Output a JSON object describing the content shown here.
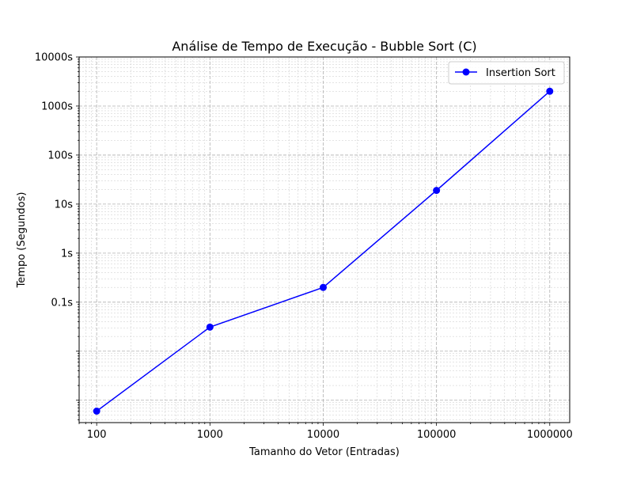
{
  "chart_data": {
    "type": "line",
    "title": "Análise de Tempo de Execução - Bubble Sort (C)",
    "xlabel": "Tamanho do Vetor (Entradas)",
    "ylabel": "Tempo (Segundos)",
    "x_scale": "log",
    "y_scale": "log",
    "xlim": [
      70,
      1500000
    ],
    "ylim": [
      0.00035,
      10000
    ],
    "x_ticks": [
      {
        "value": 100,
        "label": "100"
      },
      {
        "value": 1000,
        "label": "1000"
      },
      {
        "value": 10000,
        "label": "10000"
      },
      {
        "value": 100000,
        "label": "100000"
      },
      {
        "value": 1000000,
        "label": "1000000"
      }
    ],
    "y_ticks": [
      {
        "value": 0.1,
        "label": "0.1s"
      },
      {
        "value": 1,
        "label": "1s"
      },
      {
        "value": 10,
        "label": "10s"
      },
      {
        "value": 100,
        "label": "100s"
      },
      {
        "value": 1000,
        "label": "1000s"
      },
      {
        "value": 10000,
        "label": "10000s"
      }
    ],
    "grid": true,
    "legend_position": "top-right",
    "series": [
      {
        "name": "Insertion Sort",
        "color": "#0000ff",
        "marker": "circle",
        "x": [
          100,
          1000,
          10000,
          100000,
          1000000
        ],
        "y": [
          0.0006,
          0.031,
          0.2,
          19,
          2000
        ]
      }
    ]
  }
}
